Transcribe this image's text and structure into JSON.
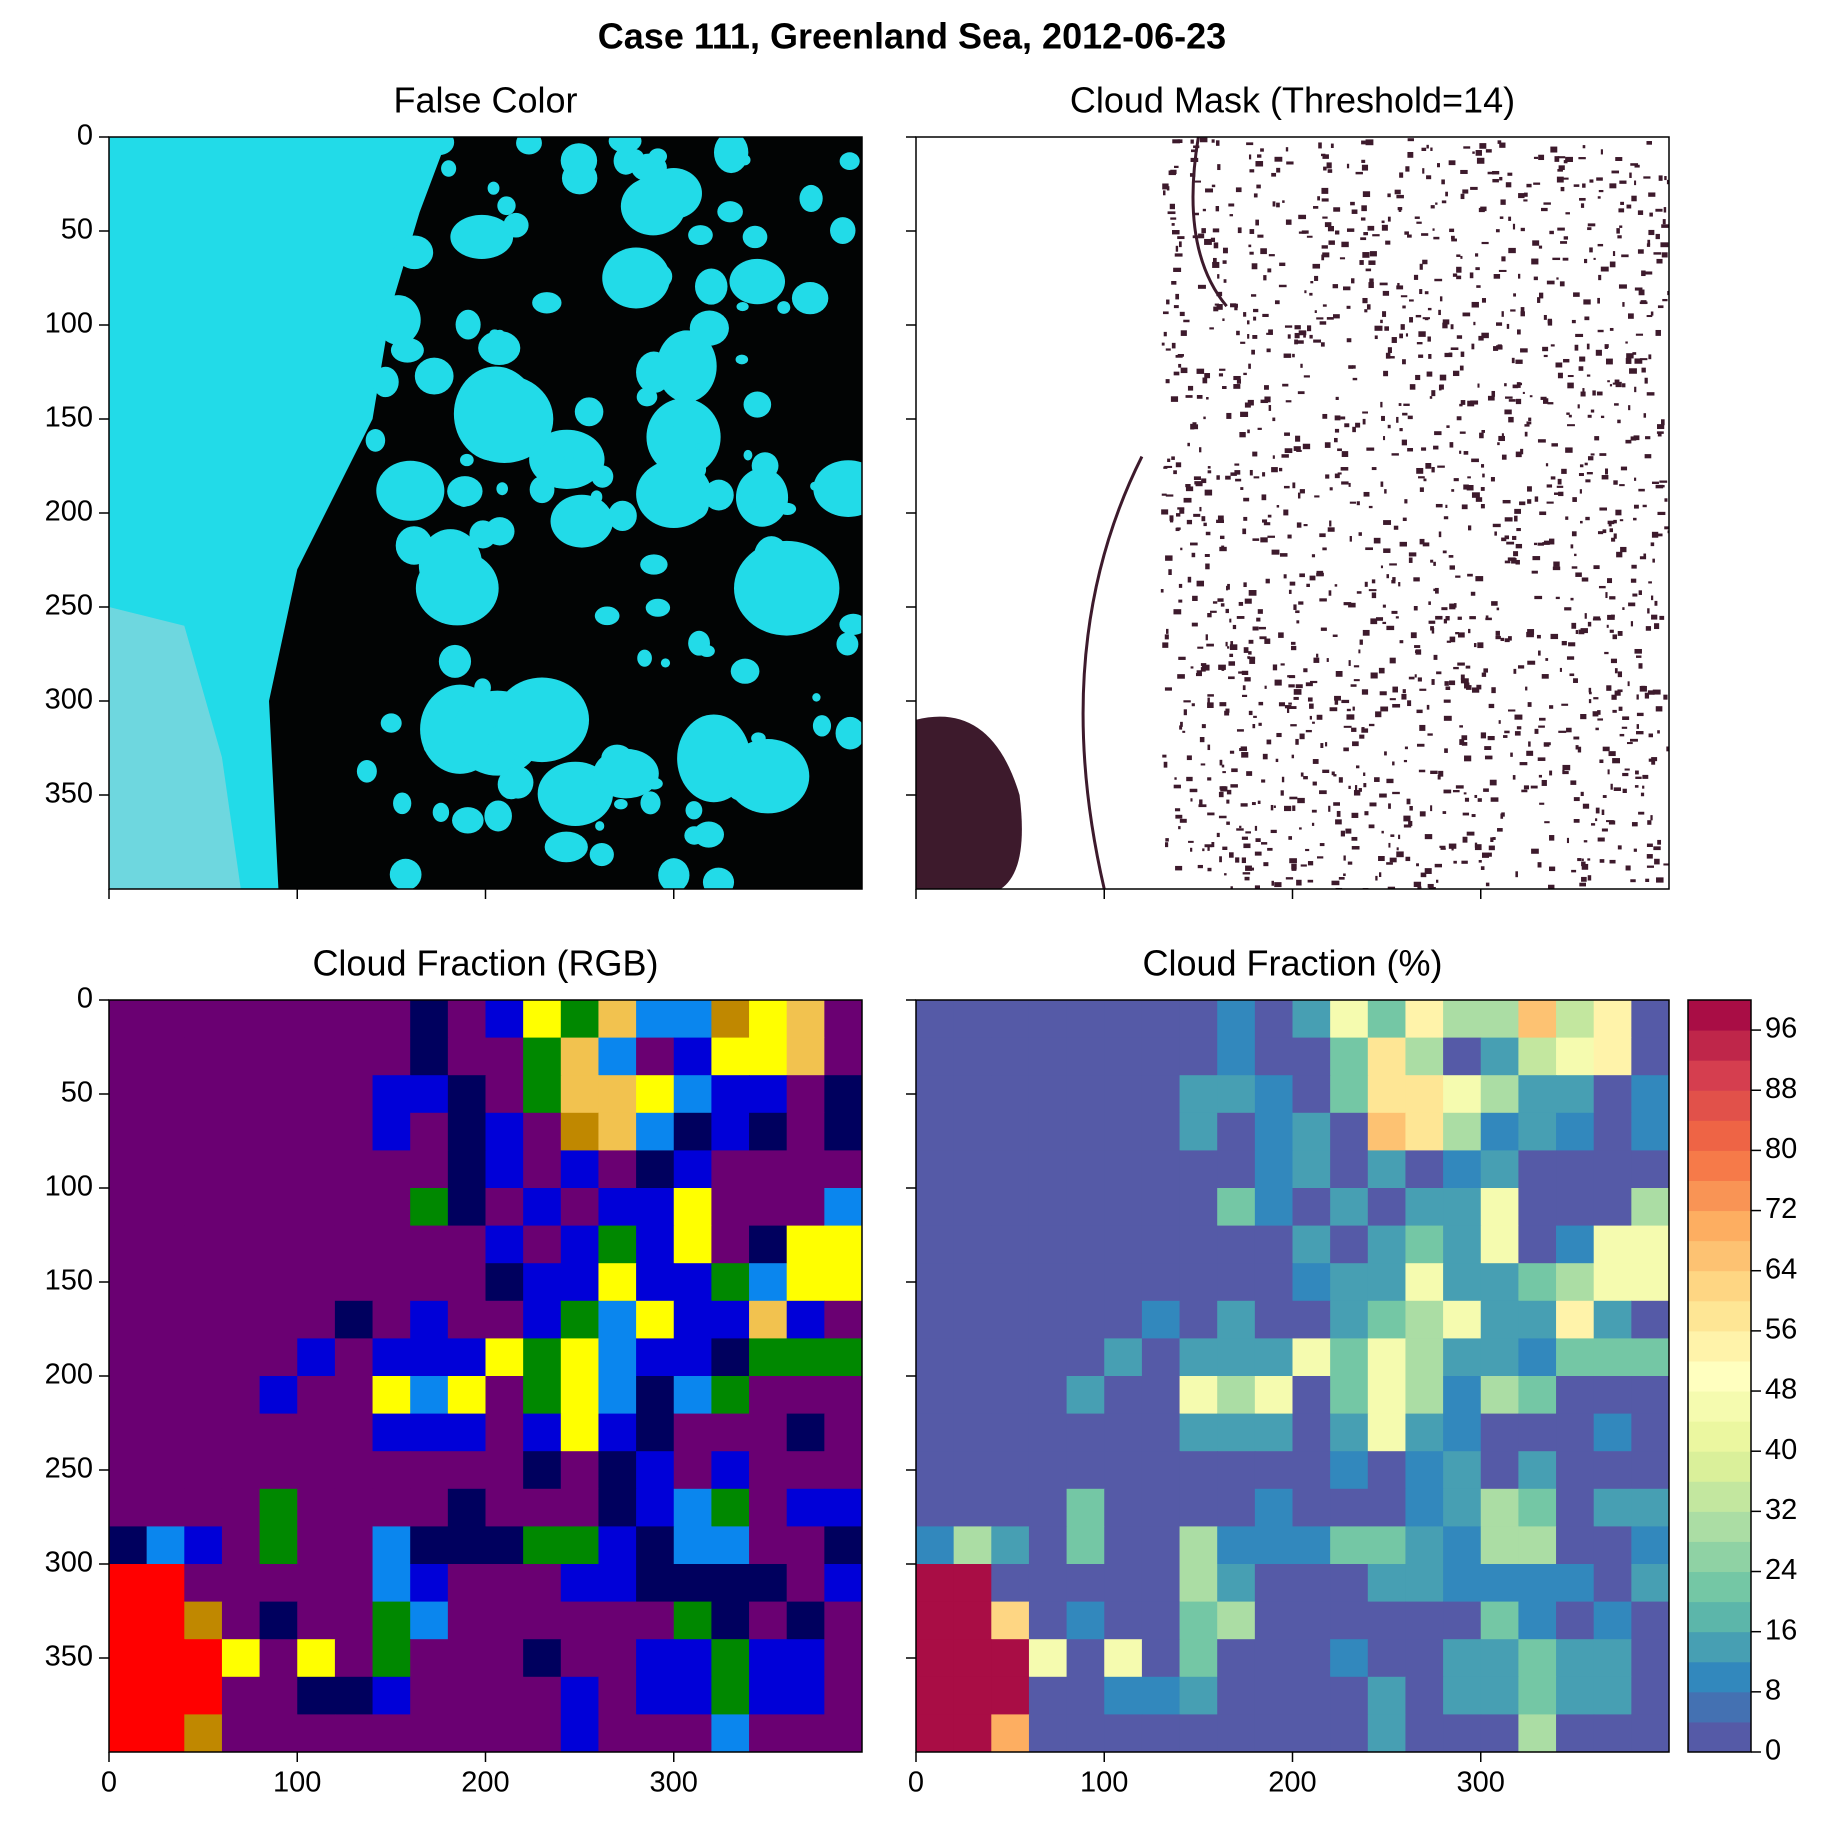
{
  "suptitle": "Case 111, Greenland Sea, 2012-06-23",
  "chart_data": [
    {
      "type": "image",
      "title": "False Color",
      "xlim": [
        0,
        400
      ],
      "ylim": [
        400,
        0
      ],
      "xticks": [
        0,
        100,
        200,
        300
      ],
      "yticks": [
        0,
        50,
        100,
        150,
        200,
        250,
        300,
        350
      ],
      "show_xticklabels": false,
      "show_yticklabels": true
    },
    {
      "type": "image",
      "title": "Cloud Mask (Threshold=14)",
      "xlim": [
        0,
        400
      ],
      "ylim": [
        400,
        0
      ],
      "xticks": [
        0,
        100,
        200,
        300
      ],
      "yticks": [
        0,
        50,
        100,
        150,
        200,
        250,
        300,
        350
      ],
      "show_xticklabels": false,
      "show_yticklabels": false
    },
    {
      "type": "heatmap",
      "title": "Cloud Fraction (RGB)",
      "xlim": [
        0,
        400
      ],
      "ylim": [
        400,
        0
      ],
      "xticks": [
        0,
        100,
        200,
        300
      ],
      "yticks": [
        0,
        50,
        100,
        150,
        200,
        250,
        300,
        350
      ],
      "show_xticklabels": true,
      "show_yticklabels": true
    },
    {
      "type": "heatmap",
      "title": "Cloud Fraction (%)",
      "xlim": [
        0,
        400
      ],
      "ylim": [
        400,
        0
      ],
      "xticks": [
        0,
        100,
        200,
        300
      ],
      "yticks": [
        0,
        50,
        100,
        150,
        200,
        250,
        300,
        350
      ],
      "show_xticklabels": true,
      "show_yticklabels": false,
      "colormap": "Spectral_r",
      "levels": [
        0,
        4,
        8,
        12,
        16,
        20,
        24,
        28,
        32,
        36,
        40,
        44,
        48,
        52,
        56,
        60,
        64,
        68,
        72,
        76,
        80,
        84,
        88,
        92,
        96,
        100
      ],
      "zlim": [
        0,
        100
      ],
      "zticks": [
        0,
        8,
        16,
        24,
        32,
        40,
        48,
        56,
        64,
        72,
        80,
        88,
        96
      ],
      "values": [
        [
          2,
          2,
          2,
          2,
          2,
          2,
          2,
          2,
          10,
          2,
          14,
          46,
          22,
          54,
          30,
          30,
          66,
          34,
          54,
          2
        ],
        [
          2,
          2,
          2,
          2,
          2,
          2,
          2,
          2,
          10,
          2,
          2,
          22,
          56,
          30,
          2,
          14,
          34,
          46,
          54,
          2
        ],
        [
          2,
          2,
          2,
          2,
          2,
          2,
          2,
          14,
          14,
          10,
          2,
          22,
          56,
          56,
          46,
          30,
          14,
          14,
          2,
          10
        ],
        [
          2,
          2,
          2,
          2,
          2,
          2,
          2,
          14,
          2,
          10,
          14,
          2,
          66,
          56,
          30,
          10,
          14,
          10,
          2,
          10
        ],
        [
          2,
          2,
          2,
          2,
          2,
          2,
          2,
          2,
          2,
          10,
          14,
          2,
          14,
          2,
          10,
          14,
          2,
          2,
          2,
          2
        ],
        [
          2,
          2,
          2,
          2,
          2,
          2,
          2,
          2,
          22,
          10,
          2,
          14,
          2,
          14,
          14,
          46,
          2,
          2,
          2,
          30
        ],
        [
          2,
          2,
          2,
          2,
          2,
          2,
          2,
          2,
          2,
          2,
          14,
          2,
          14,
          22,
          14,
          46,
          2,
          10,
          46,
          46
        ],
        [
          2,
          2,
          2,
          2,
          2,
          2,
          2,
          2,
          2,
          2,
          10,
          14,
          14,
          46,
          14,
          14,
          22,
          30,
          46,
          46
        ],
        [
          2,
          2,
          2,
          2,
          2,
          2,
          10,
          2,
          14,
          2,
          2,
          14,
          22,
          30,
          46,
          14,
          14,
          54,
          14,
          2
        ],
        [
          2,
          2,
          2,
          2,
          2,
          14,
          2,
          14,
          14,
          14,
          46,
          22,
          46,
          30,
          14,
          14,
          10,
          22,
          22,
          22
        ],
        [
          2,
          2,
          2,
          2,
          14,
          2,
          2,
          46,
          30,
          46,
          2,
          22,
          46,
          30,
          10,
          30,
          22,
          2,
          2,
          2
        ],
        [
          2,
          2,
          2,
          2,
          2,
          2,
          2,
          14,
          14,
          14,
          2,
          14,
          46,
          14,
          10,
          2,
          2,
          2,
          10,
          2
        ],
        [
          2,
          2,
          2,
          2,
          2,
          2,
          2,
          2,
          2,
          2,
          2,
          10,
          2,
          10,
          14,
          2,
          14,
          2,
          2,
          2
        ],
        [
          2,
          2,
          2,
          2,
          22,
          2,
          2,
          2,
          2,
          10,
          2,
          2,
          2,
          10,
          14,
          30,
          22,
          2,
          14,
          14
        ],
        [
          10,
          30,
          14,
          2,
          22,
          2,
          2,
          30,
          10,
          10,
          10,
          22,
          22,
          14,
          10,
          30,
          30,
          2,
          2,
          10
        ],
        [
          98,
          98,
          2,
          2,
          2,
          2,
          2,
          30,
          14,
          2,
          2,
          2,
          14,
          14,
          10,
          10,
          10,
          10,
          2,
          14
        ],
        [
          98,
          98,
          62,
          2,
          10,
          2,
          2,
          22,
          30,
          2,
          2,
          2,
          2,
          2,
          2,
          22,
          10,
          2,
          10,
          2
        ],
        [
          98,
          98,
          98,
          46,
          2,
          46,
          2,
          22,
          2,
          2,
          2,
          10,
          2,
          2,
          14,
          14,
          22,
          14,
          14,
          2
        ],
        [
          98,
          98,
          98,
          2,
          2,
          10,
          10,
          14,
          2,
          2,
          2,
          2,
          14,
          2,
          14,
          14,
          22,
          14,
          14,
          2
        ],
        [
          98,
          98,
          70,
          2,
          2,
          2,
          2,
          2,
          2,
          2,
          2,
          2,
          14,
          2,
          2,
          2,
          30,
          2,
          2,
          2
        ]
      ]
    }
  ]
}
